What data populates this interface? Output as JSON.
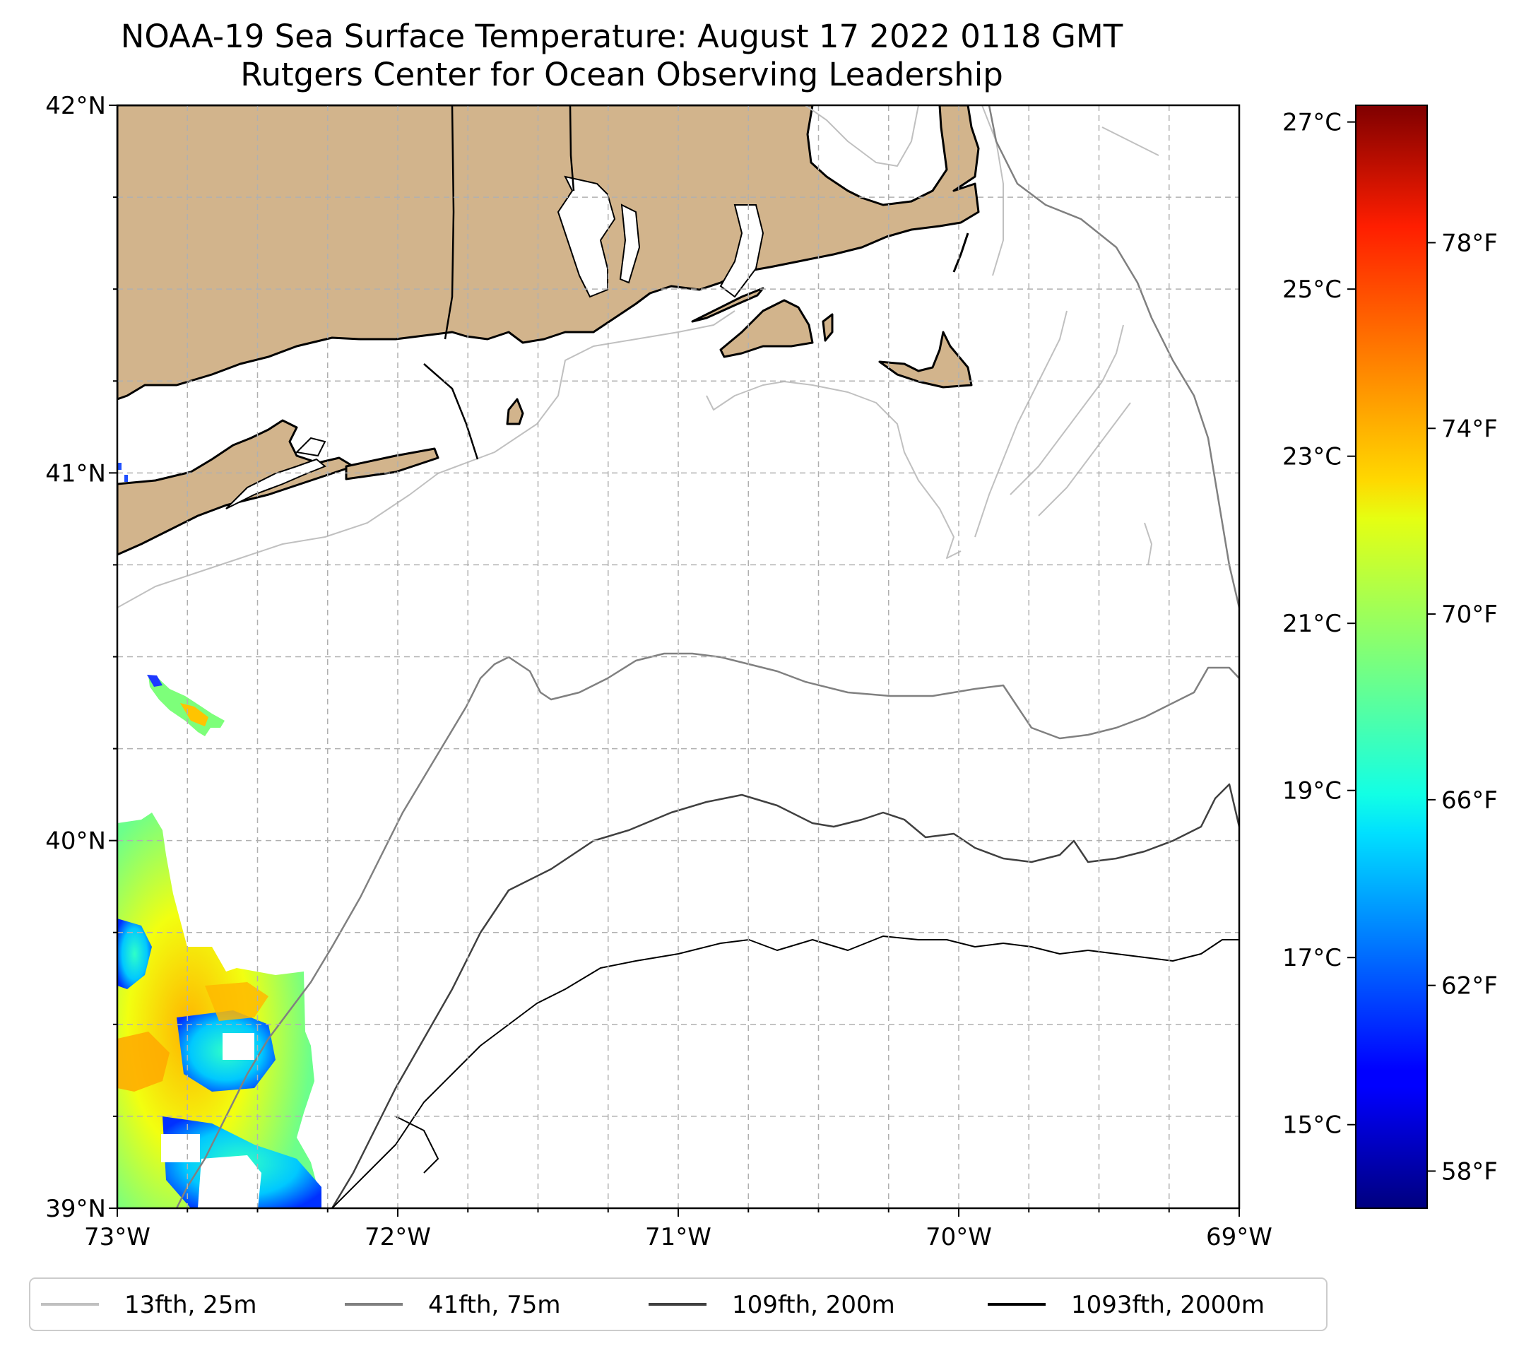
{
  "title": "NOAA-19 Sea Surface Temperature: August 17 2022 0118 GMT",
  "subtitle": "Rutgers Center for Ocean Observing Leadership",
  "map": {
    "lon_range": [
      -73,
      -69
    ],
    "lat_range": [
      39,
      42
    ],
    "lon_ticks": [
      {
        "value": -73,
        "label": "73°W"
      },
      {
        "value": -72,
        "label": "72°W"
      },
      {
        "value": -71,
        "label": "71°W"
      },
      {
        "value": -70,
        "label": "70°W"
      },
      {
        "value": -69,
        "label": "69°W"
      }
    ],
    "lat_ticks": [
      {
        "value": 42,
        "label": "42°N"
      },
      {
        "value": 41,
        "label": "41°N"
      },
      {
        "value": 40,
        "label": "40°N"
      },
      {
        "value": 39,
        "label": "39°N"
      }
    ],
    "gridlines": true,
    "land_color": "#d2b48c",
    "ocean_color": "#ffffff"
  },
  "colorbar": {
    "colormap": "jet",
    "celsius_ticks": [
      "27°C",
      "25°C",
      "23°C",
      "21°C",
      "19°C",
      "17°C",
      "15°C"
    ],
    "celsius_values": [
      27,
      25,
      23,
      21,
      19,
      17,
      15
    ],
    "fahrenheit_ticks": [
      "78°F",
      "74°F",
      "70°F",
      "66°F",
      "62°F",
      "58°F"
    ],
    "fahrenheit_values": [
      78,
      74,
      70,
      66,
      62,
      58
    ],
    "range_celsius": [
      14,
      27.2
    ]
  },
  "legend": {
    "placement": "bottom",
    "entries": [
      {
        "label": "13fth, 25m",
        "color": "#c0c0c0"
      },
      {
        "label": "41fth, 75m",
        "color": "#808080"
      },
      {
        "label": "109fth, 200m",
        "color": "#404040"
      },
      {
        "label": "1093fth, 2000m",
        "color": "#000000"
      }
    ]
  }
}
